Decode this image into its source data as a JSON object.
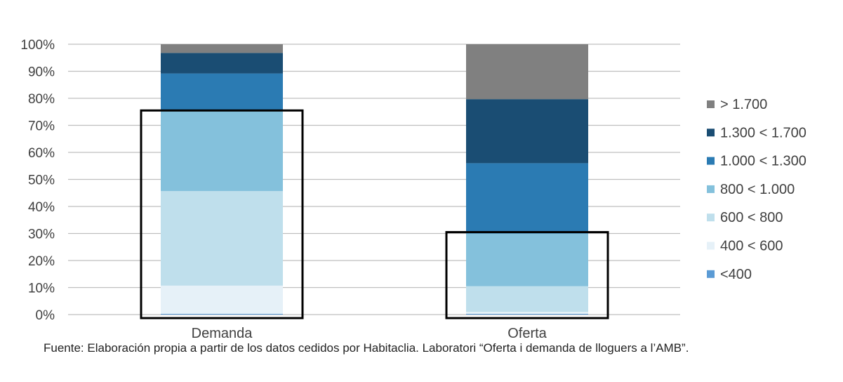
{
  "chart_data": {
    "type": "bar",
    "stacked": true,
    "categories": [
      "Demanda",
      "Oferta"
    ],
    "series": [
      {
        "name": "<400",
        "color": "#5b9bd5",
        "values": [
          0.3,
          0.3
        ]
      },
      {
        "name": "400 < 600",
        "color": "#e6f1f8",
        "values": [
          10.4,
          0.7
        ]
      },
      {
        "name": "600 < 800",
        "color": "#bfdfec",
        "values": [
          35,
          9.5
        ]
      },
      {
        "name": "800 < 1.000",
        "color": "#84c1dc",
        "values": [
          29.7,
          19.5
        ]
      },
      {
        "name": "1.000 < 1.300",
        "color": "#2b7bb3",
        "values": [
          13.8,
          26
        ]
      },
      {
        "name": "1.300 < 1.700",
        "color": "#1a4d73",
        "values": [
          7.6,
          23.7
        ]
      },
      {
        "name": "> 1.700",
        "color": "#808080",
        "values": [
          3.2,
          20.3
        ]
      }
    ],
    "legend_order": [
      "> 1.700",
      "1.300 < 1.700",
      "1.000 < 1.300",
      "800 < 1.000",
      "600 < 800",
      "400 < 600",
      "<400"
    ],
    "yticks": [
      "0%",
      "10%",
      "20%",
      "30%",
      "40%",
      "50%",
      "60%",
      "70%",
      "80%",
      "90%",
      "100%"
    ],
    "ylim": [
      0,
      100
    ],
    "legend_position": "right",
    "highlight_boxes": [
      {
        "category": "Demanda",
        "from": 0,
        "to": 75.5
      },
      {
        "category": "Oferta",
        "from": 0,
        "to": 30.5
      }
    ],
    "grid_color": "#bfbfbf"
  },
  "source_text": "Fuente: Elaboración propia a partir de los datos cedidos por Habitaclia. Laboratori “Oferta i demanda de lloguers a l’AMB”."
}
